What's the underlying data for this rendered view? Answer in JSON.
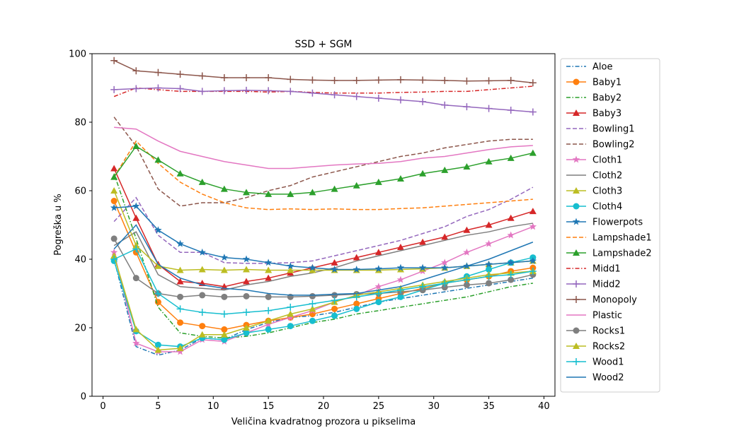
{
  "chart_data": {
    "type": "line",
    "title": "SSD + SGM",
    "xlabel": "Veličina kvadratnog prozora u pikselima",
    "ylabel": "Pogreška u %",
    "xlim": [
      -1,
      41
    ],
    "ylim": [
      0,
      100
    ],
    "xticks": [
      0,
      5,
      10,
      15,
      20,
      25,
      30,
      35,
      40
    ],
    "yticks": [
      0,
      20,
      40,
      60,
      80,
      100
    ],
    "legend_position": "right-outside",
    "x": [
      1,
      3,
      5,
      7,
      9,
      11,
      13,
      15,
      17,
      19,
      21,
      23,
      25,
      27,
      29,
      31,
      33,
      35,
      37,
      39
    ],
    "series": [
      {
        "name": "Aloe",
        "color": "#1f77b4",
        "dash": "dashdot",
        "marker": "none",
        "values": [
          40,
          14.5,
          12,
          13.5,
          17,
          16.5,
          19.5,
          21.5,
          23,
          23.5,
          24.5,
          26,
          27.5,
          28.5,
          29.5,
          30.5,
          31.5,
          32.5,
          33.5,
          34.5
        ]
      },
      {
        "name": "Baby1",
        "color": "#ff7f0e",
        "dash": "solid",
        "marker": "circle",
        "values": [
          57,
          42,
          27.5,
          21.5,
          20.5,
          19.5,
          20.8,
          22,
          23,
          24,
          25.5,
          27,
          28.5,
          30,
          31.5,
          33,
          34,
          35,
          36.5,
          37.5
        ]
      },
      {
        "name": "Baby2",
        "color": "#2ca02c",
        "dash": "dashdot",
        "marker": "none",
        "values": [
          65,
          46,
          26,
          18.5,
          17.5,
          17,
          17.5,
          18.5,
          20,
          21.5,
          22.5,
          24,
          25,
          26,
          27,
          28,
          29,
          30.5,
          32,
          33
        ]
      },
      {
        "name": "Baby3",
        "color": "#d62728",
        "dash": "solid",
        "marker": "triangle",
        "values": [
          66.5,
          52,
          38.5,
          33.5,
          33,
          32,
          33.5,
          34.5,
          36,
          37.5,
          39,
          40.5,
          42,
          43.5,
          45,
          46.5,
          48.5,
          50,
          52,
          54
        ]
      },
      {
        "name": "Bowling1",
        "color": "#9467bd",
        "dash": "dashed",
        "marker": "none",
        "values": [
          51,
          58,
          47,
          42,
          42,
          39,
          38.8,
          38.8,
          39,
          39.5,
          41,
          42.5,
          44,
          45.5,
          47.5,
          49.5,
          52.5,
          54.5,
          57.5,
          61
        ]
      },
      {
        "name": "Bowling2",
        "color": "#8c564b",
        "dash": "dashed",
        "marker": "none",
        "values": [
          81.5,
          73,
          60.5,
          55.5,
          56.5,
          56.5,
          58,
          60,
          61.5,
          64,
          65.5,
          67,
          68.5,
          70,
          71,
          72.5,
          73.5,
          74.5,
          75,
          75
        ]
      },
      {
        "name": "Cloth1",
        "color": "#e377c2",
        "dash": "solid",
        "marker": "star",
        "values": [
          42,
          15.5,
          13,
          13,
          16.5,
          16,
          18.5,
          21,
          23,
          25,
          27.5,
          29.5,
          32,
          34,
          36.5,
          39,
          42,
          44.5,
          47,
          49.5
        ]
      },
      {
        "name": "Cloth2",
        "color": "#7f7f7f",
        "dash": "solid",
        "marker": "none",
        "values": [
          44,
          48,
          35.5,
          32,
          31.5,
          31,
          32.5,
          33.5,
          35,
          36,
          37.5,
          39.5,
          41,
          42.5,
          44,
          45.5,
          47,
          48,
          49.5,
          50.5
        ]
      },
      {
        "name": "Cloth3",
        "color": "#bcbd22",
        "dash": "solid",
        "marker": "triangle",
        "values": [
          60,
          44,
          38,
          36.8,
          37,
          36.8,
          37,
          36.8,
          36.8,
          36.8,
          36.8,
          36.8,
          36.8,
          37,
          37.2,
          37.5,
          38,
          38.5,
          39,
          39.5
        ]
      },
      {
        "name": "Cloth4",
        "color": "#17becf",
        "dash": "solid",
        "marker": "circle",
        "values": [
          39.5,
          19,
          15,
          14.5,
          17,
          16.5,
          18.5,
          19.5,
          20.5,
          22,
          23.5,
          25.5,
          27.5,
          29,
          31,
          33,
          35,
          37,
          39,
          40.5
        ]
      },
      {
        "name": "Flowerpots",
        "color": "#1f77b4",
        "dash": "solid",
        "marker": "star",
        "values": [
          55,
          55.5,
          48.5,
          44.5,
          42,
          40.5,
          40,
          39,
          38,
          37.5,
          37,
          37,
          37.2,
          37.5,
          37.5,
          37.5,
          38,
          38.5,
          39,
          39.5
        ]
      },
      {
        "name": "Lampshade1",
        "color": "#ff7f0e",
        "dash": "dashed",
        "marker": "none",
        "values": [
          64,
          74.5,
          68,
          62.5,
          59,
          56.5,
          55,
          54.5,
          54.7,
          54.5,
          54.7,
          54.5,
          54.5,
          54.8,
          55,
          55.5,
          56,
          56.5,
          57,
          57.5
        ]
      },
      {
        "name": "Lampshade2",
        "color": "#2ca02c",
        "dash": "solid",
        "marker": "triangle",
        "values": [
          64,
          73,
          69,
          65,
          62.5,
          60.5,
          59.5,
          59,
          59,
          59.5,
          60.5,
          61.5,
          62.5,
          63.5,
          65,
          66,
          67,
          68.5,
          69.5,
          71
        ]
      },
      {
        "name": "Midd1",
        "color": "#d62728",
        "dash": "dashdot",
        "marker": "none",
        "values": [
          87.5,
          90,
          89.5,
          89,
          89,
          89,
          89,
          88.8,
          89,
          88.7,
          88.5,
          88.5,
          88.5,
          88.7,
          88.8,
          89,
          89,
          89.5,
          90,
          90.5
        ]
      },
      {
        "name": "Midd2",
        "color": "#9467bd",
        "dash": "solid",
        "marker": "plus",
        "values": [
          89.5,
          89.8,
          90,
          89.8,
          89,
          89.2,
          89.3,
          89.2,
          89,
          88.5,
          88,
          87.5,
          87,
          86.5,
          86,
          85,
          84.5,
          84,
          83.5,
          83
        ]
      },
      {
        "name": "Monopoly",
        "color": "#8c564b",
        "dash": "solid",
        "marker": "plus",
        "values": [
          98,
          95,
          94.5,
          94,
          93.5,
          93,
          93,
          93,
          92.5,
          92.3,
          92.2,
          92.2,
          92.3,
          92.4,
          92.3,
          92.2,
          92,
          92.1,
          92.2,
          91.5
        ]
      },
      {
        "name": "Plastic",
        "color": "#e377c2",
        "dash": "solid",
        "marker": "none",
        "values": [
          78.5,
          78,
          74.5,
          71.5,
          70,
          68.5,
          67.5,
          66.5,
          66.5,
          67,
          67.5,
          67.8,
          68,
          68.5,
          69.5,
          70,
          71,
          72,
          72.8,
          73.2
        ]
      },
      {
        "name": "Rocks1",
        "color": "#7f7f7f",
        "dash": "solid",
        "marker": "circle",
        "values": [
          46,
          34.5,
          30,
          29,
          29.5,
          29,
          29.2,
          29,
          29,
          29.2,
          29.5,
          29.8,
          30,
          30.5,
          31,
          31.8,
          32.5,
          33,
          34,
          35.5
        ]
      },
      {
        "name": "Rocks2",
        "color": "#bcbd22",
        "dash": "solid",
        "marker": "triangle",
        "values": [
          41,
          19.5,
          13.5,
          14,
          18,
          18,
          20,
          22,
          24,
          25.5,
          27.5,
          29.5,
          30.5,
          31.5,
          32.5,
          33.5,
          34.5,
          35.5,
          36,
          36.5
        ]
      },
      {
        "name": "Wood1",
        "color": "#17becf",
        "dash": "solid",
        "marker": "plus",
        "values": [
          40,
          43,
          30,
          25.5,
          24.5,
          24,
          24.5,
          25,
          26,
          27,
          28,
          29,
          30,
          31,
          32,
          33,
          34,
          35,
          35.5,
          36.5
        ]
      },
      {
        "name": "Wood2",
        "color": "#1f77b4",
        "dash": "solid",
        "marker": "none",
        "values": [
          43,
          50,
          38.5,
          34.5,
          32.5,
          31.5,
          31,
          30,
          29.5,
          29.5,
          29.8,
          30,
          31,
          32,
          34,
          36,
          38,
          40,
          42.5,
          45
        ]
      }
    ]
  }
}
